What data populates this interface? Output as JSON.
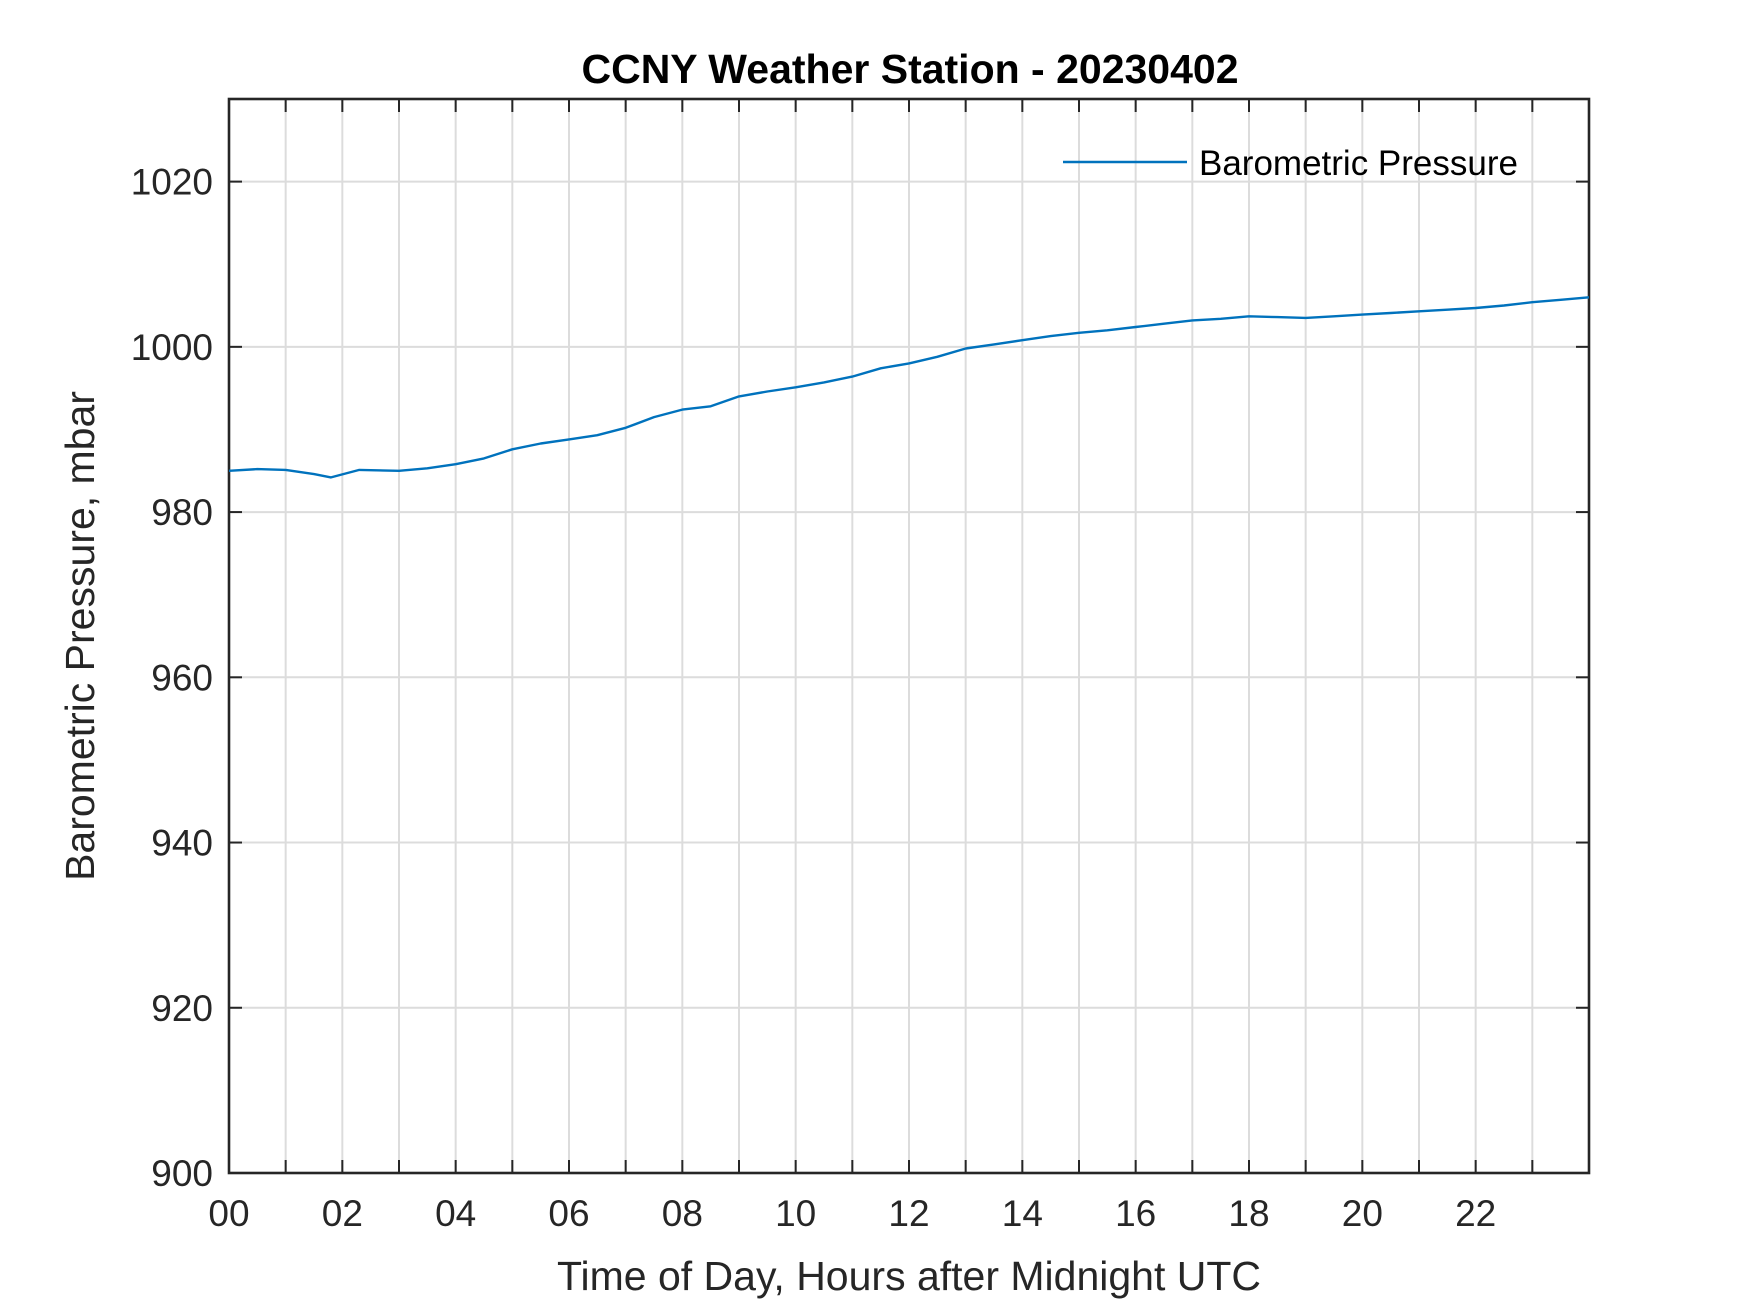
{
  "chart_data": {
    "type": "line",
    "title": "CCNY Weather Station - 20230402",
    "xlabel": "Time of Day, Hours after Midnight UTC",
    "ylabel": "Barometric Pressure, mbar",
    "xlim": [
      0,
      24
    ],
    "ylim": [
      900,
      1030
    ],
    "x_tick_values": [
      0,
      2,
      4,
      6,
      8,
      10,
      12,
      14,
      16,
      18,
      20,
      22
    ],
    "x_tick_labels": [
      "00",
      "02",
      "04",
      "06",
      "08",
      "10",
      "12",
      "14",
      "16",
      "18",
      "20",
      "22"
    ],
    "x_minor_grid_step": 1,
    "y_tick_values": [
      900,
      920,
      940,
      960,
      980,
      1000,
      1020
    ],
    "y_tick_labels": [
      "900",
      "920",
      "940",
      "960",
      "980",
      "1000",
      "1020"
    ],
    "grid": true,
    "legend_position": "top-right",
    "series": [
      {
        "name": "Barometric Pressure",
        "color": "#0072BD",
        "x": [
          0,
          0.5,
          1,
          1.5,
          1.8,
          2.3,
          3,
          3.5,
          4,
          4.5,
          5,
          5.5,
          6,
          6.5,
          7,
          7.5,
          8,
          8.5,
          9,
          9.5,
          10,
          10.5,
          11,
          11.5,
          12,
          12.5,
          13,
          13.5,
          14,
          14.5,
          15,
          15.5,
          16,
          16.5,
          17,
          17.5,
          18,
          18.5,
          19,
          19.5,
          20,
          20.5,
          21,
          21.5,
          22,
          22.5,
          23,
          23.5,
          24
        ],
        "y": [
          985,
          985.2,
          985.1,
          984.6,
          984.2,
          985.1,
          985.0,
          985.3,
          985.8,
          986.5,
          987.6,
          988.3,
          988.8,
          989.3,
          990.2,
          991.5,
          992.4,
          992.8,
          994.0,
          994.6,
          995.1,
          995.7,
          996.4,
          997.4,
          998.0,
          998.8,
          999.8,
          1000.3,
          1000.8,
          1001.3,
          1001.7,
          1002.0,
          1002.4,
          1002.8,
          1003.2,
          1003.4,
          1003.7,
          1003.6,
          1003.5,
          1003.7,
          1003.9,
          1004.1,
          1004.3,
          1004.5,
          1004.7,
          1005.0,
          1005.4,
          1005.7,
          1006.0
        ]
      }
    ]
  }
}
